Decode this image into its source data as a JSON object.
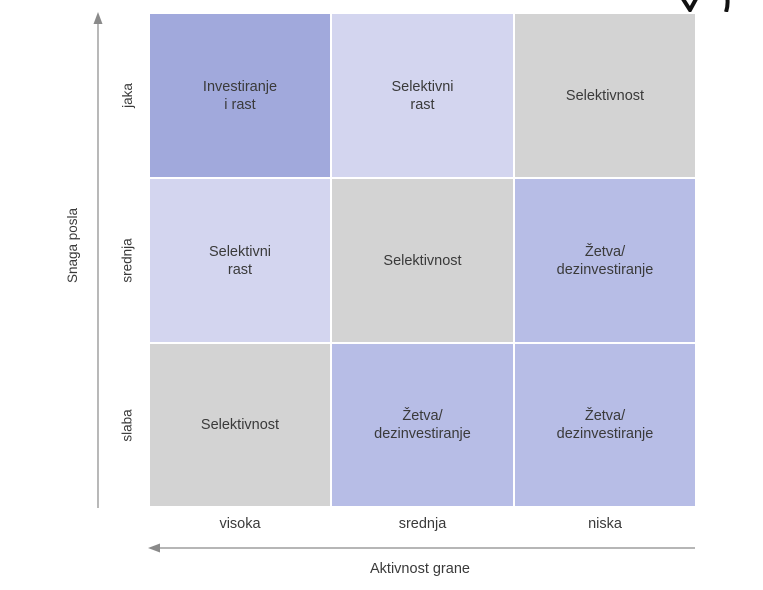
{
  "diagram": {
    "y_axis_title": "Snaga posla",
    "x_axis_title": "Aktivnost grane",
    "row_labels": [
      "jaka",
      "srednja",
      "slaba"
    ],
    "column_labels": [
      "visoka",
      "srednja",
      "niska"
    ],
    "cells": [
      [
        {
          "text": "Investiranje\ni rast",
          "color": "#a1a9dc"
        },
        {
          "text": "Selektivni\nrast",
          "color": "#d3d5ef"
        },
        {
          "text": "Selektivnost",
          "color": "#d3d3d3"
        }
      ],
      [
        {
          "text": "Selektivni\nrast",
          "color": "#d3d5ef"
        },
        {
          "text": "Selektivnost",
          "color": "#d3d3d3"
        },
        {
          "text": "Žetva/\ndezinvestiranje",
          "color": "#b7bde6"
        }
      ],
      [
        {
          "text": "Selektivnost",
          "color": "#d3d3d3"
        },
        {
          "text": "Žetva/\ndezinvestiranje",
          "color": "#b7bde6"
        },
        {
          "text": "Žetva/\ndezinvestiranje",
          "color": "#b7bde6"
        }
      ]
    ]
  }
}
